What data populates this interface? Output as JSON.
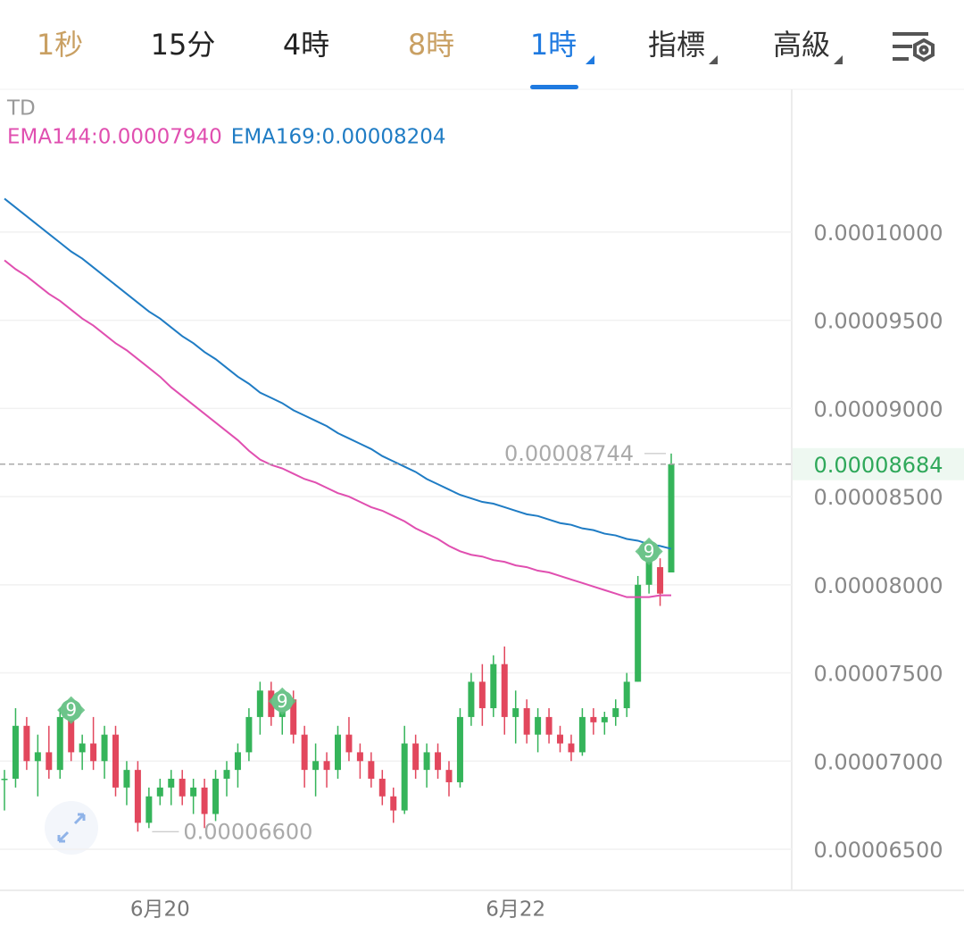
{
  "tabs": [
    {
      "label": "1秒",
      "color": "#c9a063",
      "active": false,
      "dropdown": false
    },
    {
      "label": "15分",
      "color": "#222222",
      "active": false,
      "dropdown": false
    },
    {
      "label": "4時",
      "color": "#222222",
      "active": false,
      "dropdown": false
    },
    {
      "label": "8時",
      "color": "#c9a063",
      "active": false,
      "dropdown": false
    },
    {
      "label": "1時",
      "color": "#1f7ae0",
      "active": true,
      "dropdown": true
    },
    {
      "label": "指標",
      "color": "#333333",
      "active": false,
      "dropdown": true
    },
    {
      "label": "高級",
      "color": "#333333",
      "active": false,
      "dropdown": true
    }
  ],
  "chart_data": {
    "type": "candlestick",
    "indicator_label": "TD",
    "categories": [
      null,
      null,
      null,
      null,
      null,
      null,
      null,
      null,
      null,
      null,
      null,
      null,
      null,
      null,
      "6月20",
      null,
      null,
      null,
      null,
      null,
      null,
      null,
      null,
      null,
      null,
      null,
      null,
      null,
      null,
      null,
      null,
      null,
      null,
      null,
      null,
      null,
      null,
      null,
      null,
      null,
      null,
      null,
      null,
      null,
      null,
      null,
      "6月22",
      null,
      null,
      null,
      null,
      null,
      null,
      null,
      null,
      null,
      null,
      null,
      null,
      null,
      null
    ],
    "open": [
      6.9e-05,
      6.9e-05,
      7.2e-05,
      7e-05,
      7.05e-05,
      6.95e-05,
      7.25e-05,
      7.05e-05,
      7.1e-05,
      7e-05,
      7.15e-05,
      6.85e-05,
      6.95e-05,
      6.65e-05,
      6.8e-05,
      6.85e-05,
      6.9e-05,
      6.8e-05,
      6.85e-05,
      6.7e-05,
      6.9e-05,
      6.95e-05,
      7.05e-05,
      7.25e-05,
      7.4e-05,
      7.25e-05,
      7.35e-05,
      7.15e-05,
      6.95e-05,
      7e-05,
      6.95e-05,
      7.15e-05,
      7.05e-05,
      7e-05,
      6.9e-05,
      6.8e-05,
      6.72e-05,
      7.1e-05,
      6.95e-05,
      7.05e-05,
      6.95e-05,
      6.88e-05,
      7.25e-05,
      7.45e-05,
      7.3e-05,
      7.55e-05,
      7.25e-05,
      7.3e-05,
      7.15e-05,
      7.25e-05,
      7.15e-05,
      7.1e-05,
      7.05e-05,
      7.25e-05,
      7.22e-05,
      7.25e-05,
      7.3e-05,
      7.45e-05,
      8e-05,
      8.1e-05,
      8.07e-05
    ],
    "high": [
      6.95e-05,
      7.3e-05,
      7.25e-05,
      7.15e-05,
      7.2e-05,
      7.3e-05,
      7.35e-05,
      7.15e-05,
      7.25e-05,
      7.2e-05,
      7.2e-05,
      7e-05,
      7e-05,
      6.85e-05,
      6.9e-05,
      6.95e-05,
      6.95e-05,
      6.9e-05,
      6.9e-05,
      6.95e-05,
      7e-05,
      7.1e-05,
      7.3e-05,
      7.45e-05,
      7.45e-05,
      7.4e-05,
      7.4e-05,
      7.2e-05,
      7.1e-05,
      7.05e-05,
      7.2e-05,
      7.25e-05,
      7.1e-05,
      7.05e-05,
      6.95e-05,
      6.85e-05,
      7.2e-05,
      7.15e-05,
      7.1e-05,
      7.1e-05,
      7e-05,
      7.3e-05,
      7.5e-05,
      7.55e-05,
      7.6e-05,
      7.65e-05,
      7.4e-05,
      7.35e-05,
      7.3e-05,
      7.3e-05,
      7.2e-05,
      7.15e-05,
      7.3e-05,
      7.3e-05,
      7.28e-05,
      7.35e-05,
      7.5e-05,
      8.05e-05,
      8.25e-05,
      8.15e-05,
      8.744e-05
    ],
    "low": [
      6.72e-05,
      6.85e-05,
      6.95e-05,
      6.8e-05,
      6.9e-05,
      6.9e-05,
      7e-05,
      6.95e-05,
      6.95e-05,
      6.9e-05,
      6.8e-05,
      6.75e-05,
      6.6e-05,
      6.62e-05,
      6.75e-05,
      6.75e-05,
      6.75e-05,
      6.7e-05,
      6.62e-05,
      6.66e-05,
      6.8e-05,
      6.85e-05,
      7e-05,
      7.15e-05,
      7.2e-05,
      7.15e-05,
      7.1e-05,
      6.85e-05,
      6.8e-05,
      6.85e-05,
      6.9e-05,
      7e-05,
      6.9e-05,
      6.85e-05,
      6.75e-05,
      6.65e-05,
      6.7e-05,
      6.9e-05,
      6.85e-05,
      6.9e-05,
      6.8e-05,
      6.85e-05,
      7.2e-05,
      7.2e-05,
      7.25e-05,
      7.15e-05,
      7.1e-05,
      7.1e-05,
      7.05e-05,
      7.1e-05,
      7.05e-05,
      7e-05,
      7.03e-05,
      7.15e-05,
      7.15e-05,
      7.2e-05,
      7.25e-05,
      7.45e-05,
      7.95e-05,
      7.88e-05,
      8.07e-05
    ],
    "close": [
      6.9e-05,
      7.2e-05,
      7e-05,
      7.05e-05,
      6.95e-05,
      7.25e-05,
      7.05e-05,
      7.1e-05,
      7e-05,
      7.15e-05,
      6.85e-05,
      6.95e-05,
      6.65e-05,
      6.8e-05,
      6.85e-05,
      6.9e-05,
      6.8e-05,
      6.85e-05,
      6.7e-05,
      6.9e-05,
      6.95e-05,
      7.05e-05,
      7.25e-05,
      7.4e-05,
      7.25e-05,
      7.35e-05,
      7.15e-05,
      6.95e-05,
      7e-05,
      6.95e-05,
      7.15e-05,
      7.05e-05,
      7e-05,
      6.9e-05,
      6.8e-05,
      6.72e-05,
      7.1e-05,
      6.95e-05,
      7.05e-05,
      6.95e-05,
      6.88e-05,
      7.25e-05,
      7.45e-05,
      7.3e-05,
      7.55e-05,
      7.25e-05,
      7.3e-05,
      7.15e-05,
      7.25e-05,
      7.15e-05,
      7.1e-05,
      7.05e-05,
      7.25e-05,
      7.22e-05,
      7.25e-05,
      7.3e-05,
      7.45e-05,
      8e-05,
      8.15e-05,
      7.95e-05,
      8.684e-05
    ],
    "up_color": "#35b45a",
    "down_color": "#e2475d",
    "series": [
      {
        "name": "EMA144:0.00007940",
        "color": "#e04fb0",
        "values": [
          9.84e-05,
          9.79e-05,
          9.75e-05,
          9.7e-05,
          9.65e-05,
          9.61e-05,
          9.56e-05,
          9.51e-05,
          9.47e-05,
          9.42e-05,
          9.37e-05,
          9.33e-05,
          9.28e-05,
          9.23e-05,
          9.18e-05,
          9.12e-05,
          9.07e-05,
          9.02e-05,
          8.97e-05,
          8.92e-05,
          8.87e-05,
          8.82e-05,
          8.76e-05,
          8.71e-05,
          8.68e-05,
          8.66e-05,
          8.63e-05,
          8.6e-05,
          8.58e-05,
          8.55e-05,
          8.52e-05,
          8.5e-05,
          8.47e-05,
          8.44e-05,
          8.42e-05,
          8.39e-05,
          8.36e-05,
          8.32e-05,
          8.29e-05,
          8.26e-05,
          8.22e-05,
          8.19e-05,
          8.17e-05,
          8.16e-05,
          8.14e-05,
          8.13e-05,
          8.11e-05,
          8.1e-05,
          8.08e-05,
          8.07e-05,
          8.05e-05,
          8.03e-05,
          8.01e-05,
          7.99e-05,
          7.97e-05,
          7.95e-05,
          7.93e-05,
          7.93e-05,
          7.93e-05,
          7.94e-05,
          7.94e-05
        ]
      },
      {
        "name": "EMA169:0.00008204",
        "color": "#1f7cc4",
        "values": [
          0.0001019,
          0.0001014,
          0.0001009,
          0.0001004,
          9.99e-05,
          9.94e-05,
          9.89e-05,
          9.85e-05,
          9.8e-05,
          9.75e-05,
          9.7e-05,
          9.65e-05,
          9.6e-05,
          9.55e-05,
          9.51e-05,
          9.46e-05,
          9.41e-05,
          9.37e-05,
          9.32e-05,
          9.28e-05,
          9.23e-05,
          9.18e-05,
          9.14e-05,
          9.09e-05,
          9.06e-05,
          9.03e-05,
          8.99e-05,
          8.96e-05,
          8.93e-05,
          8.9e-05,
          8.86e-05,
          8.83e-05,
          8.8e-05,
          8.77e-05,
          8.73e-05,
          8.7e-05,
          8.67e-05,
          8.64e-05,
          8.6e-05,
          8.57e-05,
          8.54e-05,
          8.51e-05,
          8.49e-05,
          8.47e-05,
          8.46e-05,
          8.44e-05,
          8.42e-05,
          8.4e-05,
          8.39e-05,
          8.37e-05,
          8.35e-05,
          8.34e-05,
          8.32e-05,
          8.31e-05,
          8.29e-05,
          8.28e-05,
          8.26e-05,
          8.25e-05,
          8.23e-05,
          8.22e-05,
          8.204e-05
        ]
      }
    ],
    "td_labels": [
      null,
      null,
      null,
      null,
      null,
      null,
      "9",
      null,
      null,
      null,
      null,
      null,
      null,
      null,
      null,
      null,
      null,
      null,
      null,
      null,
      null,
      null,
      null,
      null,
      null,
      "9",
      null,
      null,
      null,
      null,
      null,
      null,
      null,
      null,
      null,
      null,
      null,
      null,
      null,
      null,
      null,
      null,
      null,
      null,
      null,
      null,
      null,
      null,
      null,
      null,
      null,
      null,
      null,
      null,
      null,
      null,
      null,
      null,
      "9",
      null,
      null
    ],
    "max_label": {
      "value": 8.744e-05,
      "label": "0.00008744"
    },
    "min_label": {
      "value": 6.6e-05,
      "label": "0.00006600"
    },
    "last_price": {
      "value": 8.684e-05,
      "label": "0.00008684"
    },
    "ylim": [
      6.267e-05,
      0.0001081
    ],
    "yticks": [
      {
        "value": 6.5e-05,
        "label": "0.00006500"
      },
      {
        "value": 7e-05,
        "label": "0.00007000"
      },
      {
        "value": 7.5e-05,
        "label": "0.00007500"
      },
      {
        "value": 8e-05,
        "label": "0.00008000"
      },
      {
        "value": 8.5e-05,
        "label": "0.00008500"
      },
      {
        "value": 9e-05,
        "label": "0.00009000"
      },
      {
        "value": 9.5e-05,
        "label": "0.00009500"
      },
      {
        "value": 0.0001,
        "label": "0.00010000"
      }
    ],
    "grid": true
  }
}
